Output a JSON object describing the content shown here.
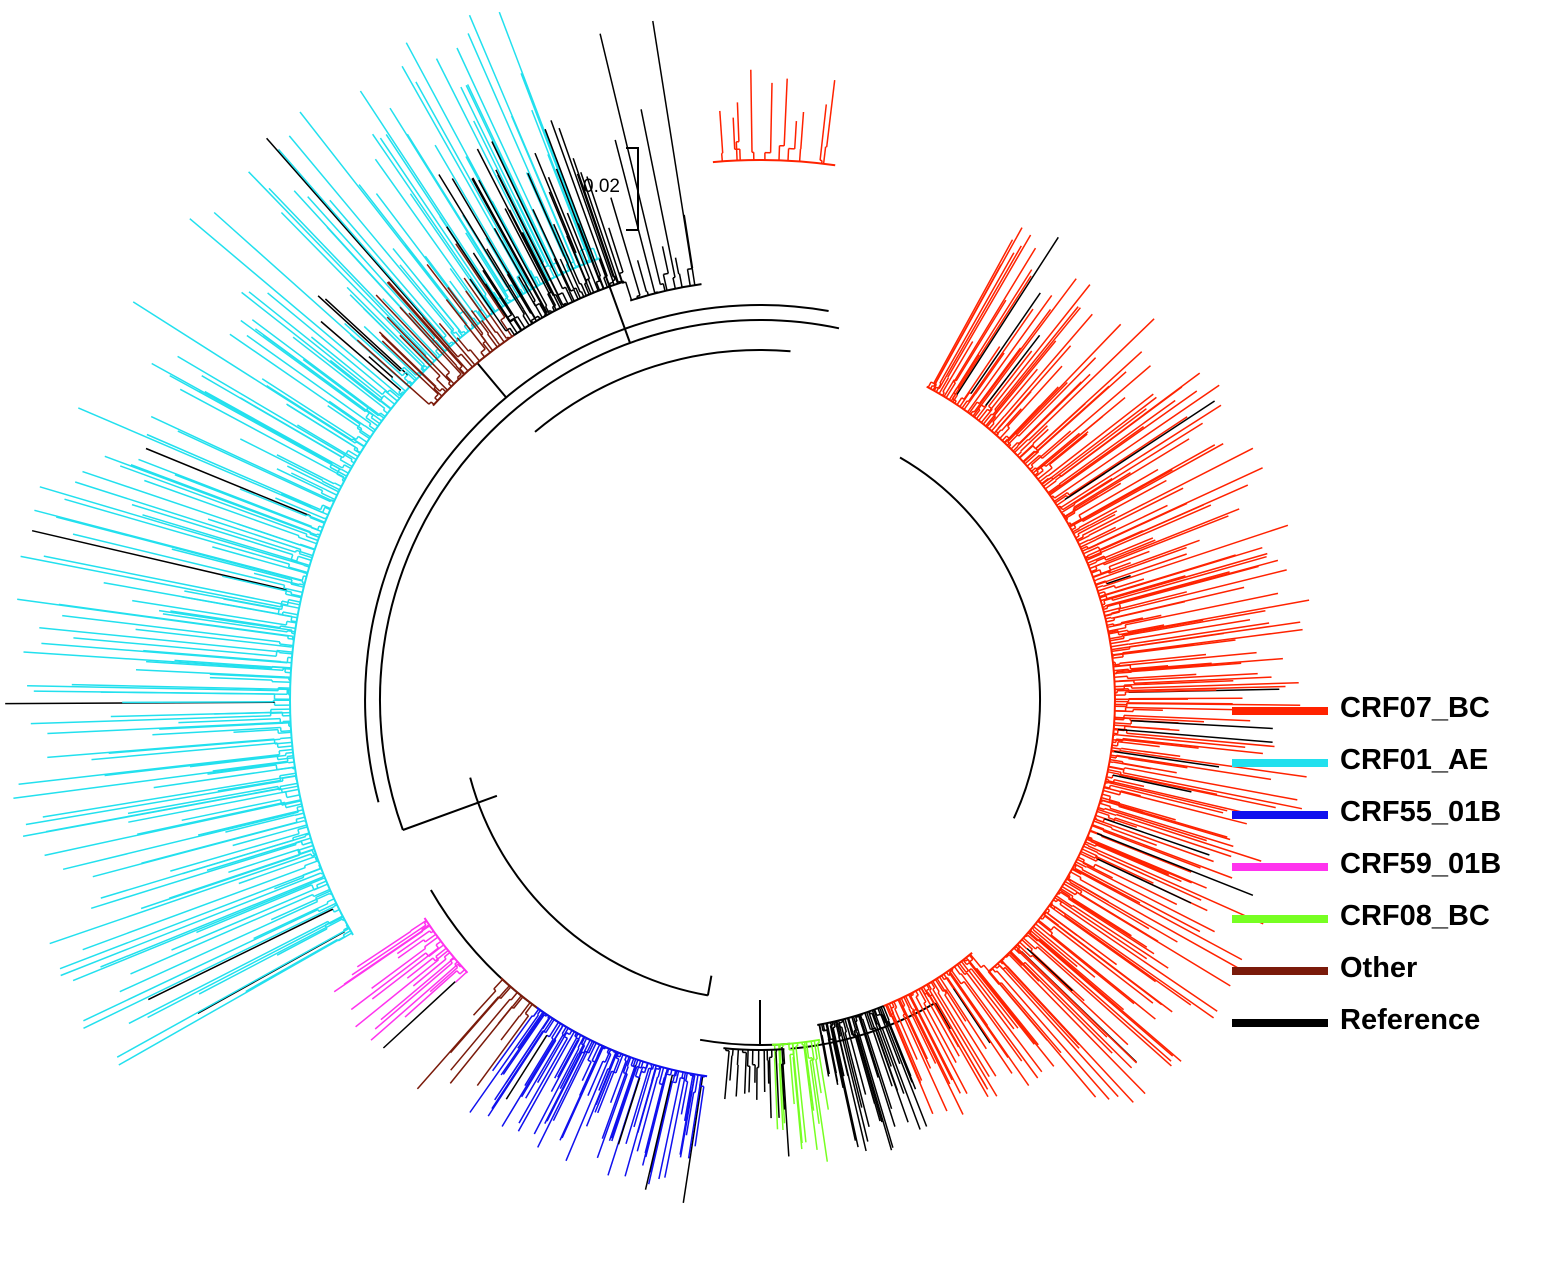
{
  "figure": {
    "scale_bar": {
      "label": "0.02"
    },
    "colors": {
      "crf07_bc": "#ff2200",
      "crf01_ae": "#22e0ee",
      "crf55_01b": "#1010ee",
      "crf59_01b": "#ff33ee",
      "crf08_bc": "#77ff22",
      "other": "#7a1a0a",
      "reference": "#000000",
      "backbone": "#000000"
    },
    "legend": {
      "items": [
        {
          "key": "crf07_bc",
          "label": "CRF07_BC",
          "color": "#ff2200"
        },
        {
          "key": "crf01_ae",
          "label": "CRF01_AE",
          "color": "#22e0ee"
        },
        {
          "key": "crf55_01b",
          "label": "CRF55_01B",
          "color": "#1010ee"
        },
        {
          "key": "crf59_01b",
          "label": "CRF59_01B",
          "color": "#ff33ee"
        },
        {
          "key": "crf08_bc",
          "label": "CRF08_BC",
          "color": "#77ff22"
        },
        {
          "key": "other",
          "label": "Other",
          "color": "#7a1a0a"
        },
        {
          "key": "reference",
          "label": "Reference",
          "color": "#000000"
        }
      ]
    }
  }
}
